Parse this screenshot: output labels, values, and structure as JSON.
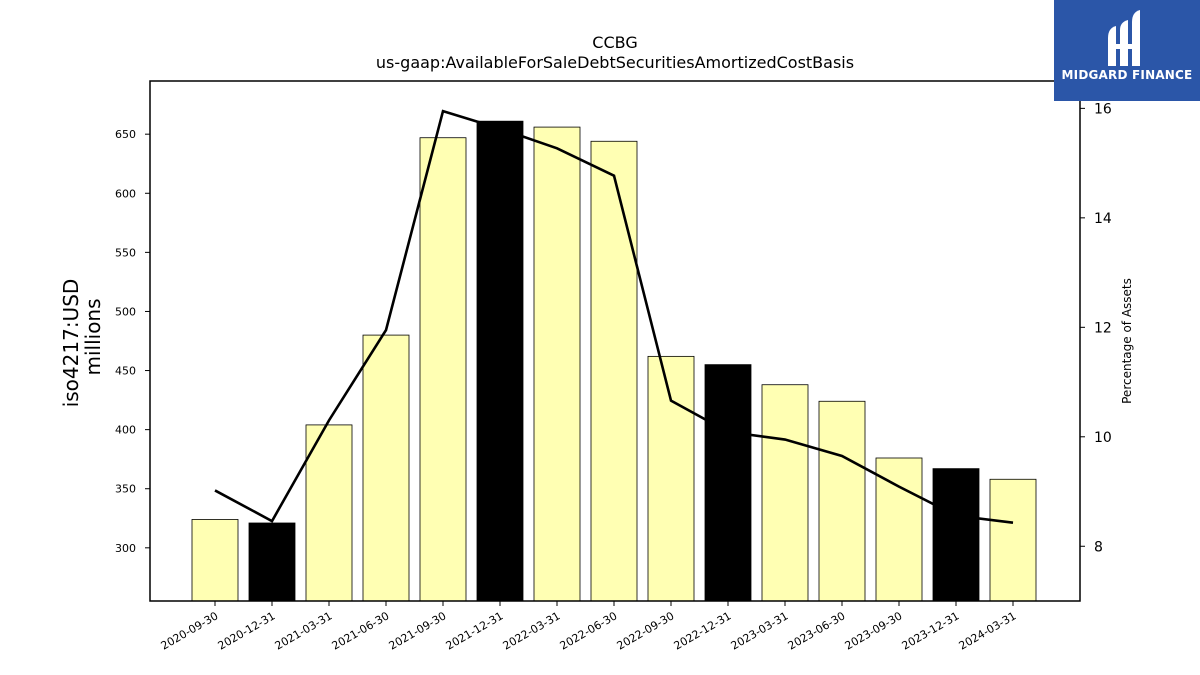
{
  "chart_data": {
    "type": "bar",
    "title": "CCBG",
    "subtitle": "us-gaap:AvailableForSaleDebtSecuritiesAmortizedCostBasis",
    "ylabel": "iso4217:USD",
    "ylabel2": "millions",
    "y2label": "Percentage of Assets",
    "ylim": [
      255,
      695
    ],
    "y2lim": [
      7,
      16.5
    ],
    "yticks": [
      300,
      350,
      400,
      450,
      500,
      550,
      600,
      650
    ],
    "y2ticks": [
      8,
      10,
      12,
      14,
      16
    ],
    "categories": [
      "2020-09-30",
      "2020-12-31",
      "2021-03-31",
      "2021-06-30",
      "2021-09-30",
      "2021-12-31",
      "2022-03-31",
      "2022-06-30",
      "2022-09-30",
      "2022-12-31",
      "2023-03-31",
      "2023-06-30",
      "2023-09-30",
      "2023-12-31",
      "2024-03-31"
    ],
    "series": [
      {
        "values": [
          324,
          321,
          404,
          480,
          647,
          661,
          656,
          644,
          462,
          455,
          438,
          424,
          376,
          367,
          358
        ],
        "axis": "left",
        "kind": "bar"
      },
      {
        "values": [
          9.02,
          8.46,
          10.3,
          11.95,
          15.95,
          15.63,
          15.27,
          14.77,
          10.66,
          10.09,
          9.95,
          9.65,
          9.09,
          8.56,
          8.43
        ],
        "axis": "right",
        "kind": "line"
      }
    ],
    "bar_colors": [
      "#ffffb3",
      "#000000",
      "#ffffb3",
      "#ffffb3",
      "#ffffb3",
      "#000000",
      "#ffffb3",
      "#ffffb3",
      "#ffffb3",
      "#000000",
      "#ffffb3",
      "#ffffb3",
      "#ffffb3",
      "#000000",
      "#ffffb3"
    ],
    "line_color": "#000000",
    "grid": false,
    "legend": "none"
  },
  "logo": {
    "text": "MIDGARD FINANCE",
    "background": "#2b56a8",
    "icon": "midgard-logo-icon"
  }
}
